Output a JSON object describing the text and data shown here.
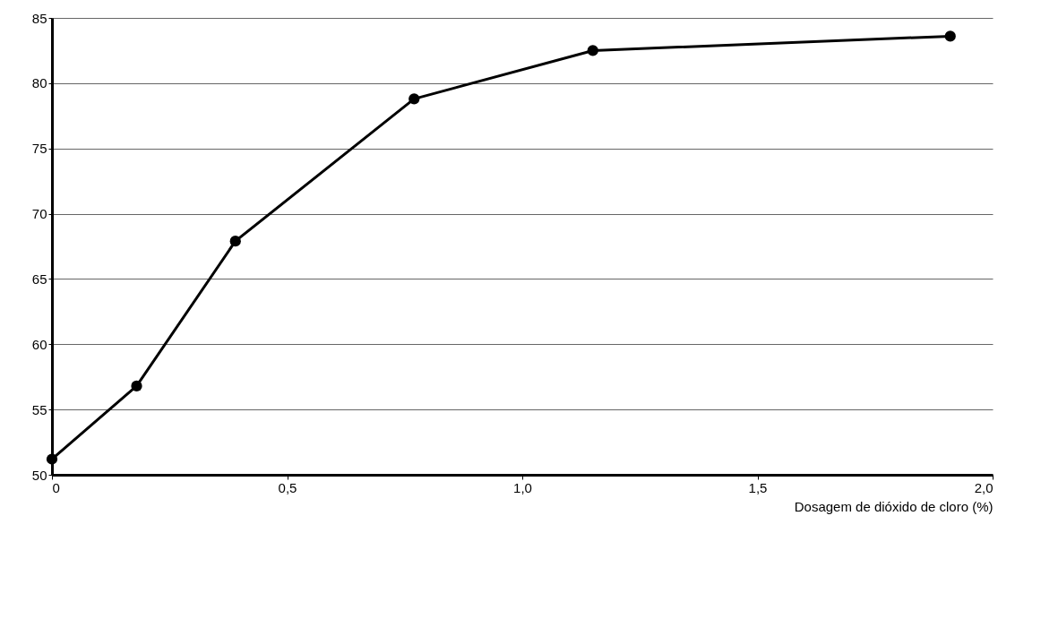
{
  "chart_data": {
    "type": "line",
    "xlabel": "Dosagem de dióxido de cloro (%)",
    "x": [
      0,
      0.18,
      0.39,
      0.77,
      1.15,
      1.91
    ],
    "series": [
      {
        "color": "#000000",
        "values": [
          51.2,
          56.8,
          67.9,
          78.8,
          82.5,
          83.6
        ]
      }
    ],
    "xlim": [
      0,
      2.0
    ],
    "xticks": [
      0,
      {
        "value": 0.5,
        "label": "0,5"
      },
      {
        "value": 1.0,
        "label": "1,0"
      },
      {
        "value": 1.5,
        "label": "1,5"
      },
      {
        "value": 2.0,
        "label": "2,0"
      }
    ],
    "ylim": [
      50,
      85
    ],
    "yticks": [
      50,
      55,
      60,
      65,
      70,
      75,
      80,
      85
    ],
    "grid": "y",
    "marker": "circle",
    "line_style": "solid"
  }
}
